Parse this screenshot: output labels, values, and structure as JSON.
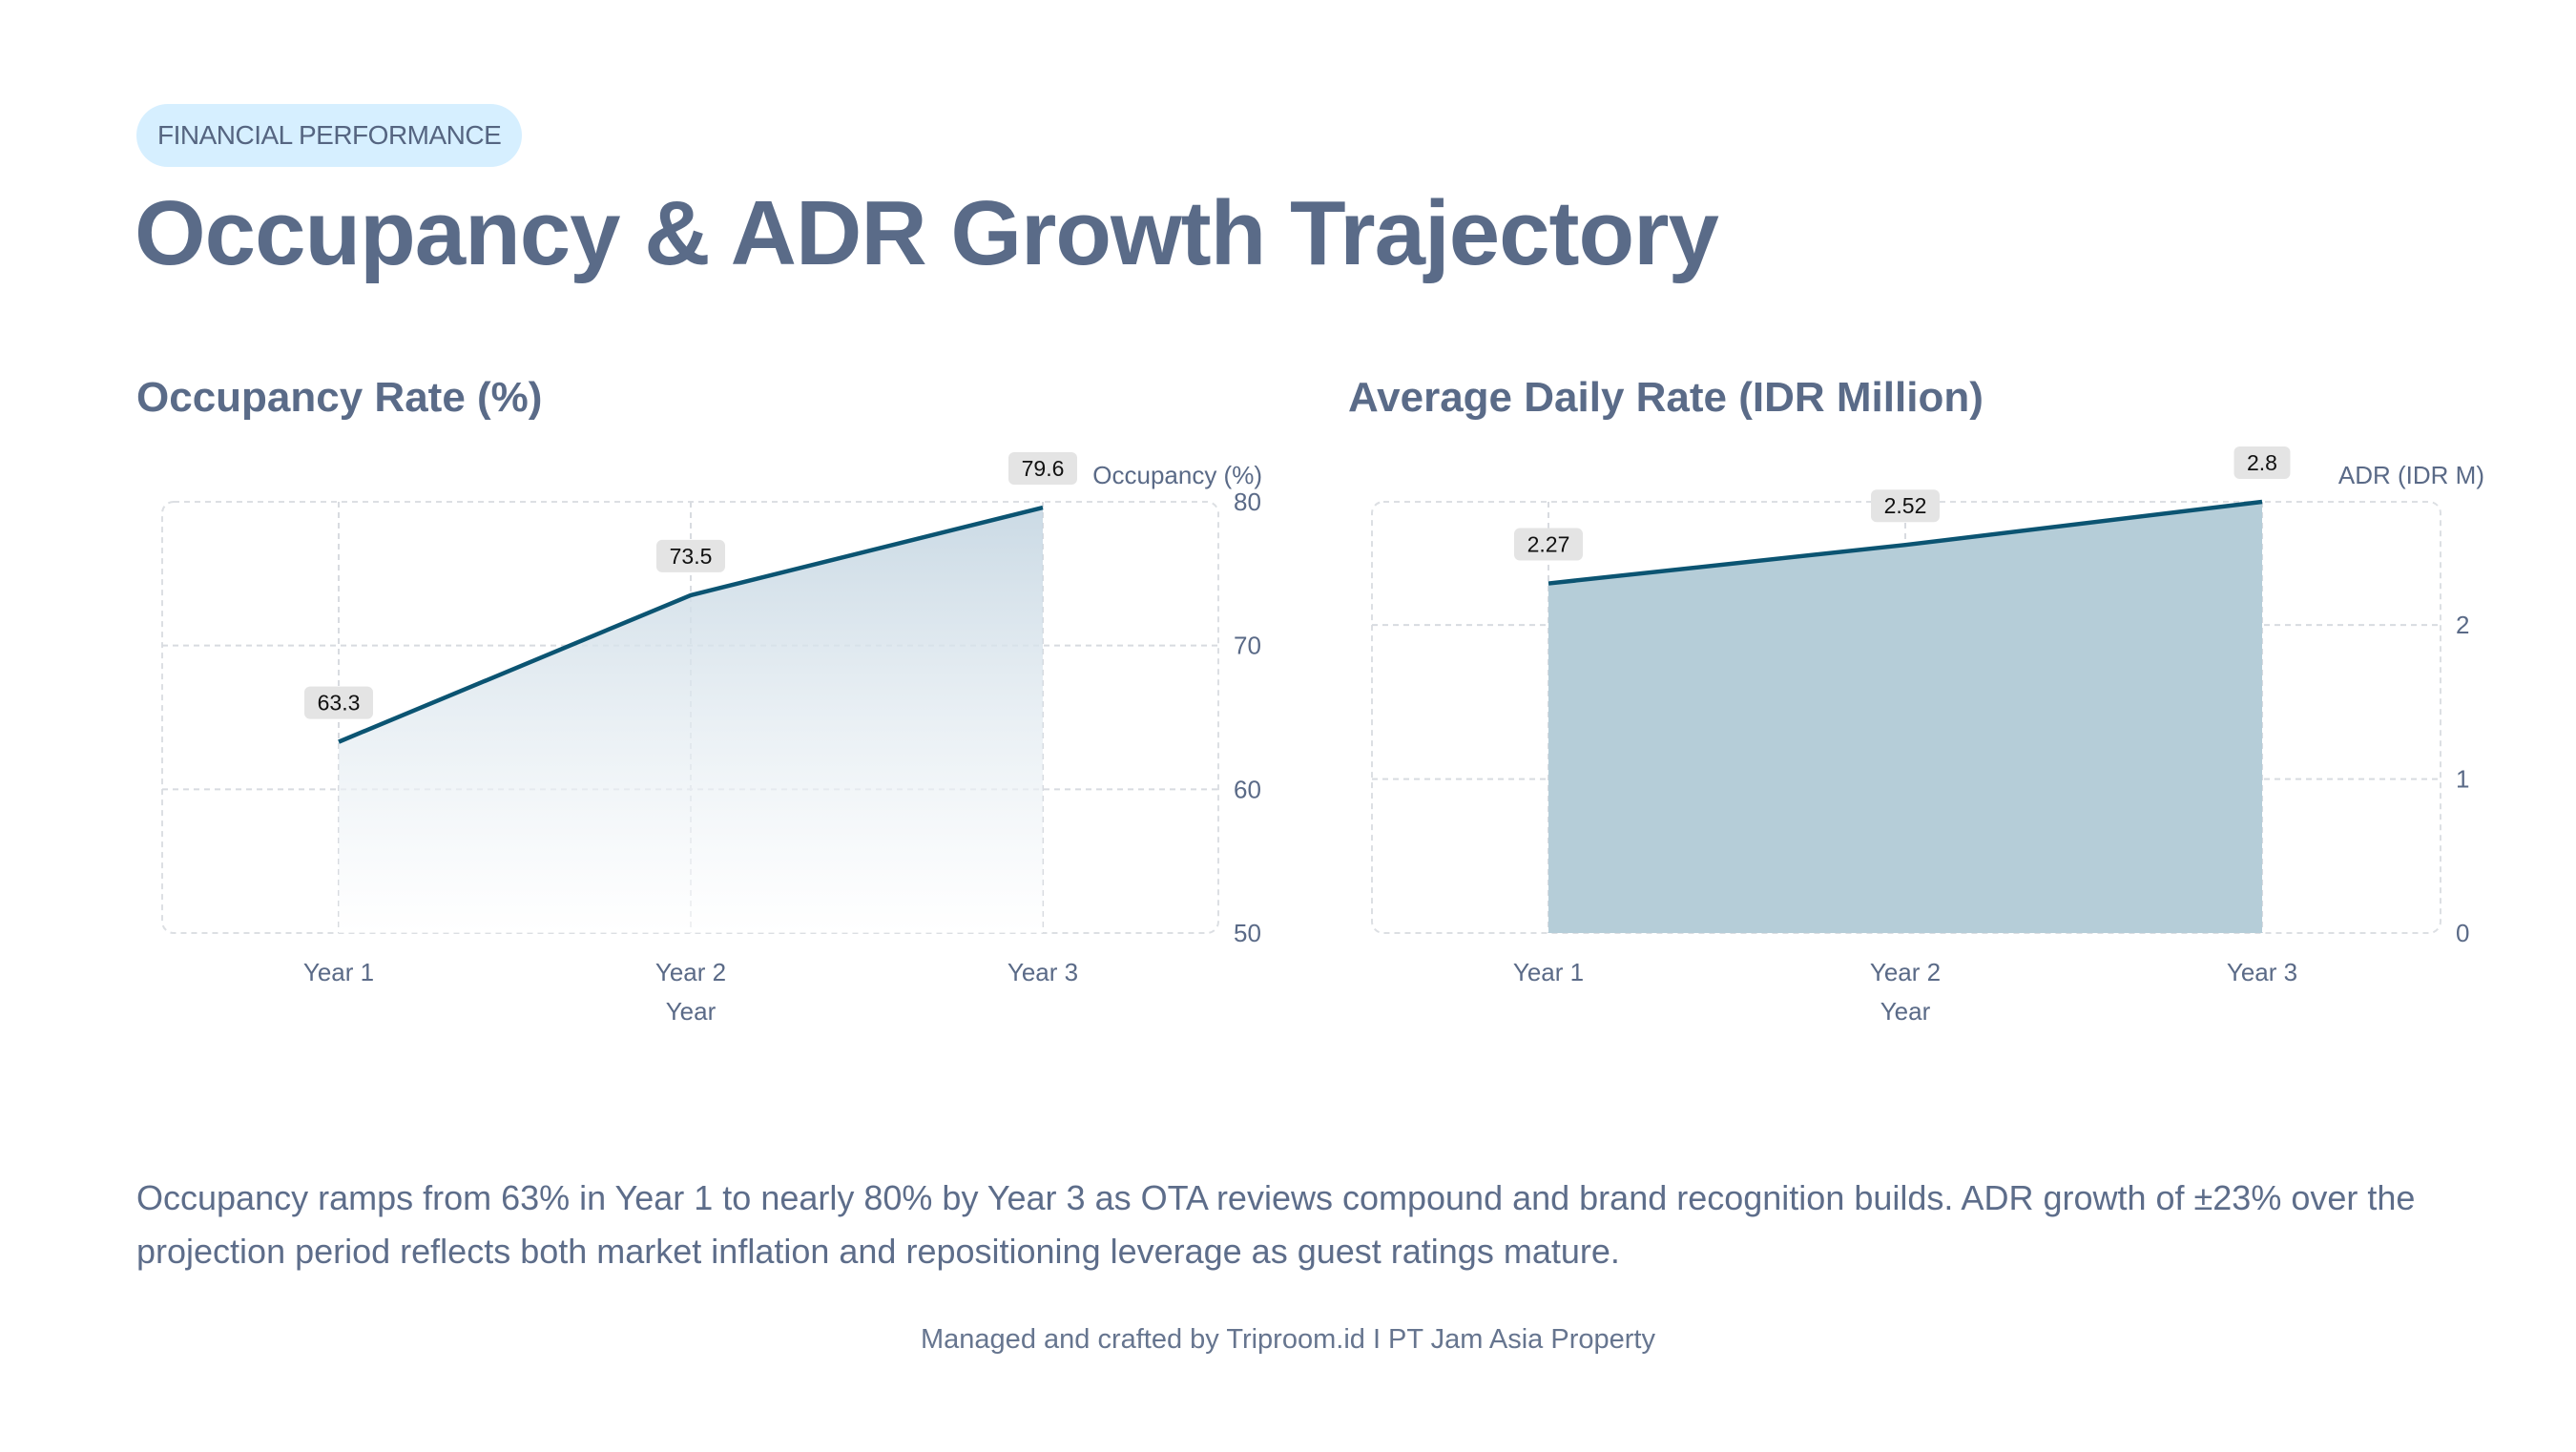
{
  "header": {
    "badge": "FINANCIAL PERFORMANCE",
    "title": "Occupancy & ADR Growth Trajectory"
  },
  "chart_data": [
    {
      "type": "area",
      "title": "Occupancy Rate (%)",
      "categories": [
        "Year 1",
        "Year 2",
        "Year 3"
      ],
      "xlabel": "Year",
      "ylabel": "Occupancy (%)",
      "y_axis_side": "right",
      "ylim": [
        50,
        80
      ],
      "yticks": [
        50,
        60,
        70,
        80
      ],
      "series": [
        {
          "values": [
            63.3,
            73.5,
            79.6
          ]
        }
      ],
      "data_labels": [
        "63.3",
        "73.5",
        "79.6"
      ],
      "fill": "gradient",
      "line_color": "#0b5472",
      "fill_color": "#c9d9e4",
      "grid": true
    },
    {
      "type": "area",
      "title": "Average Daily Rate (IDR Million)",
      "categories": [
        "Year 1",
        "Year 2",
        "Year 3"
      ],
      "xlabel": "Year",
      "ylabel": "ADR (IDR M)",
      "y_axis_side": "right",
      "ylim": [
        0,
        2.8
      ],
      "yticks": [
        0,
        1,
        2
      ],
      "series": [
        {
          "values": [
            2.27,
            2.52,
            2.8
          ]
        }
      ],
      "data_labels": [
        "2.27",
        "2.52",
        "2.8"
      ],
      "fill": "solid",
      "line_color": "#0b5472",
      "fill_color": "#b5cdd8",
      "grid": true
    }
  ],
  "summary": "Occupancy ramps from 63% in Year 1 to nearly 80% by Year 3 as OTA reviews compound and brand recognition builds. ADR growth of ±23% over the projection period reflects both market inflation and repositioning leverage as guest ratings mature.",
  "footer": "Managed and crafted by Triproom.id I PT Jam Asia Property"
}
